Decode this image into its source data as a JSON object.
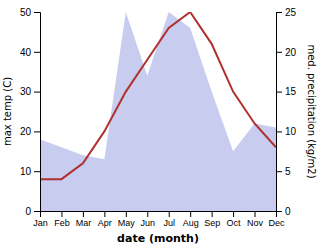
{
  "chart_data": {
    "type": "line",
    "x_label": "date (month)",
    "y_label": "max temp (C)",
    "y2_label": "med. precipitation (kg/m2)",
    "categories": [
      "Jan",
      "Feb",
      "Mar",
      "Apr",
      "May",
      "Jun",
      "Jul",
      "Aug",
      "Sep",
      "Oct",
      "Nov",
      "Dec"
    ],
    "series": [
      {
        "type": "area",
        "color": "#c8ccee",
        "axis": "y2",
        "values": [
          9,
          8,
          7,
          6.5,
          25,
          17,
          25,
          23,
          15,
          7.5,
          11,
          10.5
        ]
      },
      {
        "type": "line",
        "color": "#b03030",
        "values": [
          8,
          8,
          12,
          20,
          30,
          38,
          46,
          50,
          42,
          30,
          22,
          16
        ]
      }
    ],
    "ylim": [
      0,
      50
    ],
    "yticks": [
      0,
      10,
      20,
      30,
      40,
      50
    ],
    "y2lim": [
      0,
      25
    ],
    "y2ticks": [
      0,
      5,
      10,
      15,
      20,
      25
    ],
    "grid": false
  }
}
